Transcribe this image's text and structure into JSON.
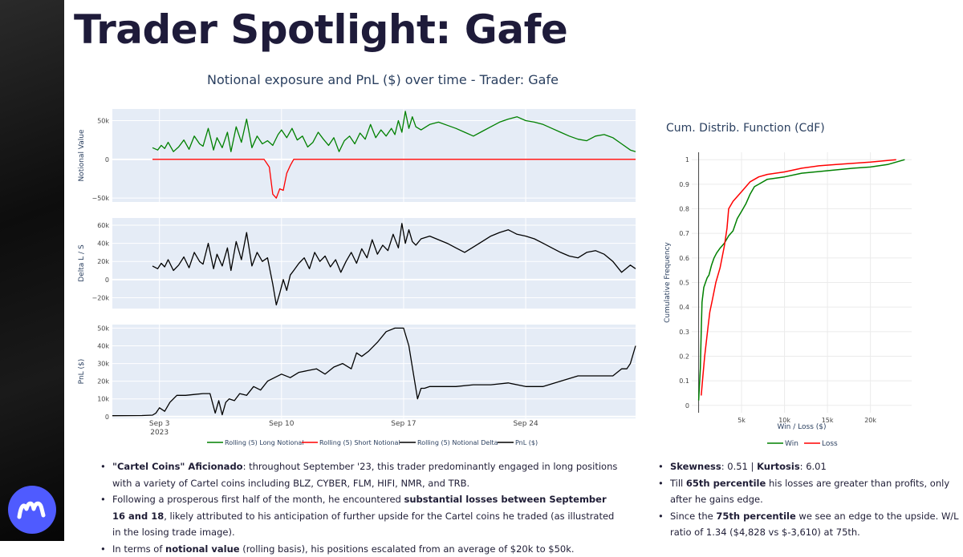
{
  "page_title": "Trader Spotlight: Gafe",
  "chart_title": "Notional exposure and PnL ($) over time - Trader: Gafe",
  "colors": {
    "long": "#008000",
    "short": "#ff0000",
    "delta": "#000000",
    "pnl": "#000000",
    "plot_bg": "#e5ecf6",
    "grid": "#ffffff",
    "brand": "#4f5bff"
  },
  "chart_data": [
    {
      "type": "line",
      "title": "Notional exposure and PnL ($) over time - Trader: Gafe",
      "xlabel": "",
      "x_range": [
        0.3,
        30.3
      ],
      "x_ticks": [
        {
          "x": 3,
          "label": "Sep 3",
          "sublabel": "2023"
        },
        {
          "x": 10,
          "label": "Sep 10",
          "sublabel": ""
        },
        {
          "x": 17,
          "label": "Sep 17",
          "sublabel": ""
        },
        {
          "x": 24,
          "label": "Sep 24",
          "sublabel": ""
        }
      ],
      "legend": [
        {
          "label": "Rolling (5) Long Notional",
          "color": "#008000"
        },
        {
          "label": "Rolling (5) Short Notional",
          "color": "#ff0000"
        },
        {
          "label": "Rolling (5) Notional Delta",
          "color": "#000000"
        },
        {
          "label": "PnL ($)",
          "color": "#000000"
        }
      ],
      "panels": [
        {
          "ylabel": "Notional Value",
          "ylim": [
            -55000,
            65000
          ],
          "yticks": [
            {
              "v": 50000,
              "label": "50k"
            },
            {
              "v": 0,
              "label": "0"
            },
            {
              "v": -50000,
              "label": "−50k"
            }
          ],
          "series": [
            {
              "name": "Rolling (5) Long Notional",
              "color": "#008000",
              "x": [
                2.6,
                2.9,
                3.1,
                3.3,
                3.5,
                3.8,
                4.1,
                4.4,
                4.7,
                5.0,
                5.3,
                5.5,
                5.8,
                6.1,
                6.3,
                6.6,
                6.9,
                7.1,
                7.4,
                7.7,
                8.0,
                8.3,
                8.6,
                8.9,
                9.2,
                9.5,
                9.8,
                10.0,
                10.3,
                10.6,
                10.9,
                11.2,
                11.5,
                11.8,
                12.1,
                12.4,
                12.7,
                13.0,
                13.3,
                13.6,
                13.9,
                14.2,
                14.5,
                14.8,
                15.1,
                15.4,
                15.7,
                16.0,
                16.3,
                16.5,
                16.7,
                16.9,
                17.1,
                17.3,
                17.5,
                17.7,
                18.0,
                18.5,
                19.0,
                19.5,
                20.0,
                20.5,
                21.0,
                21.5,
                22.0,
                22.5,
                23.0,
                23.5,
                24.0,
                24.5,
                25.0,
                25.5,
                26.0,
                26.5,
                27.0,
                27.5,
                28.0,
                28.5,
                29.0,
                29.5,
                30.0,
                30.3
              ],
              "y": [
                15000,
                12000,
                18000,
                14000,
                22000,
                10000,
                16000,
                25000,
                13000,
                30000,
                20000,
                17000,
                40000,
                12000,
                28000,
                15000,
                35000,
                10000,
                42000,
                22000,
                52000,
                15000,
                30000,
                20000,
                24000,
                18000,
                32000,
                38000,
                28000,
                40000,
                25000,
                30000,
                16000,
                22000,
                35000,
                26000,
                18000,
                28000,
                10000,
                24000,
                30000,
                20000,
                34000,
                26000,
                45000,
                28000,
                38000,
                30000,
                40000,
                32000,
                50000,
                35000,
                62000,
                40000,
                55000,
                42000,
                38000,
                45000,
                48000,
                44000,
                40000,
                35000,
                30000,
                36000,
                42000,
                48000,
                52000,
                55000,
                50000,
                48000,
                45000,
                40000,
                35000,
                30000,
                26000,
                24000,
                30000,
                32000,
                28000,
                20000,
                12000,
                10000
              ]
            },
            {
              "name": "Rolling (5) Short Notional",
              "color": "#ff0000",
              "x": [
                2.6,
                9.0,
                9.3,
                9.5,
                9.7,
                9.9,
                10.1,
                10.3,
                10.5,
                10.7,
                30.3
              ],
              "y": [
                0,
                0,
                -10000,
                -45000,
                -50000,
                -38000,
                -40000,
                -18000,
                -8000,
                0,
                0
              ]
            }
          ]
        },
        {
          "ylabel": "Delta L / S",
          "ylim": [
            -32000,
            68000
          ],
          "yticks": [
            {
              "v": 60000,
              "label": "60k"
            },
            {
              "v": 40000,
              "label": "40k"
            },
            {
              "v": 20000,
              "label": "20k"
            },
            {
              "v": 0,
              "label": "0"
            },
            {
              "v": -20000,
              "label": "−20k"
            }
          ],
          "series": [
            {
              "name": "Rolling (5) Notional Delta",
              "color": "#000000",
              "x": [
                2.6,
                2.9,
                3.1,
                3.3,
                3.5,
                3.8,
                4.1,
                4.4,
                4.7,
                5.0,
                5.3,
                5.5,
                5.8,
                6.1,
                6.3,
                6.6,
                6.9,
                7.1,
                7.4,
                7.7,
                8.0,
                8.3,
                8.6,
                8.9,
                9.2,
                9.5,
                9.7,
                9.9,
                10.1,
                10.3,
                10.5,
                10.7,
                11.0,
                11.3,
                11.6,
                11.9,
                12.2,
                12.5,
                12.8,
                13.1,
                13.4,
                13.7,
                14.0,
                14.3,
                14.6,
                14.9,
                15.2,
                15.5,
                15.8,
                16.1,
                16.4,
                16.7,
                16.9,
                17.1,
                17.3,
                17.5,
                17.7,
                18.0,
                18.5,
                19.0,
                19.5,
                20.0,
                20.5,
                21.0,
                21.5,
                22.0,
                22.5,
                23.0,
                23.5,
                24.0,
                24.5,
                25.0,
                25.5,
                26.0,
                26.5,
                27.0,
                27.5,
                28.0,
                28.5,
                29.0,
                29.5,
                30.0,
                30.3
              ],
              "y": [
                15000,
                12000,
                18000,
                14000,
                22000,
                10000,
                16000,
                25000,
                13000,
                30000,
                20000,
                17000,
                40000,
                12000,
                28000,
                15000,
                35000,
                10000,
                42000,
                22000,
                52000,
                15000,
                30000,
                20000,
                24000,
                -5000,
                -28000,
                -15000,
                0,
                -12000,
                5000,
                10000,
                18000,
                24000,
                12000,
                30000,
                20000,
                26000,
                14000,
                22000,
                8000,
                20000,
                30000,
                18000,
                34000,
                24000,
                44000,
                28000,
                38000,
                32000,
                50000,
                35000,
                62000,
                40000,
                55000,
                42000,
                38000,
                45000,
                48000,
                44000,
                40000,
                35000,
                30000,
                36000,
                42000,
                48000,
                52000,
                55000,
                50000,
                48000,
                45000,
                40000,
                35000,
                30000,
                26000,
                24000,
                30000,
                32000,
                28000,
                20000,
                8000,
                16000,
                12000
              ]
            }
          ]
        },
        {
          "ylabel": "PnL ($)",
          "ylim": [
            -1000,
            52000
          ],
          "yticks": [
            {
              "v": 50000,
              "label": "50k"
            },
            {
              "v": 40000,
              "label": "40k"
            },
            {
              "v": 30000,
              "label": "30k"
            },
            {
              "v": 20000,
              "label": "20k"
            },
            {
              "v": 10000,
              "label": "10k"
            },
            {
              "v": 0,
              "label": "0"
            }
          ],
          "series": [
            {
              "name": "PnL ($)",
              "color": "#000000",
              "x": [
                0.3,
                2.0,
                2.6,
                2.8,
                3.0,
                3.3,
                3.6,
                4.0,
                4.5,
                5.0,
                5.5,
                5.9,
                6.2,
                6.4,
                6.6,
                6.8,
                7.0,
                7.3,
                7.6,
                8.0,
                8.4,
                8.8,
                9.2,
                9.6,
                10.0,
                10.5,
                11.0,
                11.5,
                12.0,
                12.5,
                13.0,
                13.5,
                14.0,
                14.3,
                14.6,
                15.0,
                15.5,
                16.0,
                16.5,
                16.8,
                17.0,
                17.3,
                17.5,
                17.8,
                18.0,
                18.2,
                18.5,
                19.0,
                20.0,
                21.0,
                22.0,
                23.0,
                24.0,
                25.0,
                26.0,
                27.0,
                28.0,
                29.0,
                29.5,
                29.8,
                30.0,
                30.3
              ],
              "y": [
                500,
                600,
                800,
                2000,
                5000,
                3000,
                8000,
                12000,
                12000,
                12500,
                13000,
                13000,
                2000,
                9000,
                1000,
                8000,
                10000,
                9000,
                13000,
                12000,
                17000,
                15000,
                20000,
                22000,
                24000,
                22000,
                25000,
                26000,
                27000,
                24000,
                28000,
                30000,
                27000,
                36000,
                34000,
                37000,
                42000,
                48000,
                50000,
                50000,
                50000,
                40000,
                28000,
                10000,
                16000,
                16000,
                17000,
                17000,
                17000,
                18000,
                18000,
                19000,
                17000,
                17000,
                20000,
                23000,
                23000,
                23000,
                27000,
                27000,
                30000,
                40000
              ]
            }
          ]
        }
      ]
    },
    {
      "type": "line",
      "title": "Cum. Distrib. Function (CdF)",
      "xlabel": "Win / Loss ($)",
      "ylabel": "Cumulative Frequency",
      "xlim": [
        -800,
        24800
      ],
      "ylim": [
        -0.03,
        1.03
      ],
      "x_ticks": [
        {
          "v": 5000,
          "label": "5k"
        },
        {
          "v": 10000,
          "label": "10k"
        },
        {
          "v": 15000,
          "label": "15k"
        },
        {
          "v": 20000,
          "label": "20k"
        }
      ],
      "y_ticks": [
        {
          "v": 0,
          "label": "0"
        },
        {
          "v": 0.1,
          "label": "0.1"
        },
        {
          "v": 0.2,
          "label": "0.2"
        },
        {
          "v": 0.3,
          "label": "0.3"
        },
        {
          "v": 0.4,
          "label": "0.4"
        },
        {
          "v": 0.5,
          "label": "0.5"
        },
        {
          "v": 0.6,
          "label": "0.6"
        },
        {
          "v": 0.7,
          "label": "0.7"
        },
        {
          "v": 0.8,
          "label": "0.8"
        },
        {
          "v": 0.9,
          "label": "0.9"
        },
        {
          "v": 1,
          "label": "1"
        }
      ],
      "legend": [
        {
          "label": "Win",
          "color": "#008000"
        },
        {
          "label": "Loss",
          "color": "#ff0000"
        }
      ],
      "series": [
        {
          "name": "Win",
          "color": "#008000",
          "x": [
            0,
            200,
            300,
            400,
            600,
            800,
            1000,
            1200,
            1500,
            1800,
            2100,
            2500,
            3000,
            3500,
            4000,
            4500,
            5000,
            5500,
            6000,
            6500,
            7000,
            8000,
            10000,
            12000,
            15000,
            18000,
            20000,
            22000,
            24000
          ],
          "y": [
            0.02,
            0.15,
            0.3,
            0.42,
            0.48,
            0.5,
            0.52,
            0.53,
            0.57,
            0.6,
            0.62,
            0.64,
            0.66,
            0.69,
            0.71,
            0.76,
            0.79,
            0.82,
            0.86,
            0.89,
            0.9,
            0.92,
            0.93,
            0.945,
            0.955,
            0.965,
            0.97,
            0.98,
            1
          ]
        },
        {
          "name": "Loss",
          "color": "#ff0000",
          "x": [
            300,
            500,
            700,
            900,
            1100,
            1300,
            1600,
            2000,
            2500,
            3000,
            3300,
            3500,
            4000,
            4500,
            5000,
            6000,
            7000,
            8000,
            10000,
            12000,
            14000,
            16000,
            18000,
            20000,
            23000
          ],
          "y": [
            0.04,
            0.12,
            0.2,
            0.26,
            0.32,
            0.38,
            0.43,
            0.5,
            0.56,
            0.65,
            0.72,
            0.8,
            0.83,
            0.85,
            0.87,
            0.91,
            0.93,
            0.94,
            0.95,
            0.965,
            0.975,
            0.98,
            0.985,
            0.99,
            1
          ]
        }
      ]
    }
  ],
  "left_notes": {
    "b1_bold": "\"Cartel Coins\" Aficionado",
    "b1_text": ": throughout September '23, this trader predominantly engaged in long positions with a variety of Cartel coins including BLZ, CYBER, FLM, HIFI, NMR, and TRB.",
    "b2_pre": "Following a prosperous first half of the month, he encountered ",
    "b2_bold": "substantial losses between September 16 and 18",
    "b2_post": ", likely attributed to his anticipation of further upside for the Cartel coins he traded (as illustrated in the losing trade image).",
    "b3_pre": "In terms of ",
    "b3_bold": "notional value",
    "b3_post": " (rolling basis), his positions escalated from an average of $20k to $50k."
  },
  "right_notes": {
    "b1_bold1": "Skewness",
    "b1_text1": ": 0.51 | ",
    "b1_bold2": "Kurtosis",
    "b1_text2": ": 6.01",
    "b2_pre": "Till ",
    "b2_bold": "65th percentile",
    "b2_post": " his losses are greater than profits, only after he gains edge.",
    "b3_pre": "Since the ",
    "b3_bold": "75th percentile",
    "b3_post": " we see an edge to the upside. W/L ratio of 1.34 ($4,828 vs $-3,610) at 75th."
  }
}
